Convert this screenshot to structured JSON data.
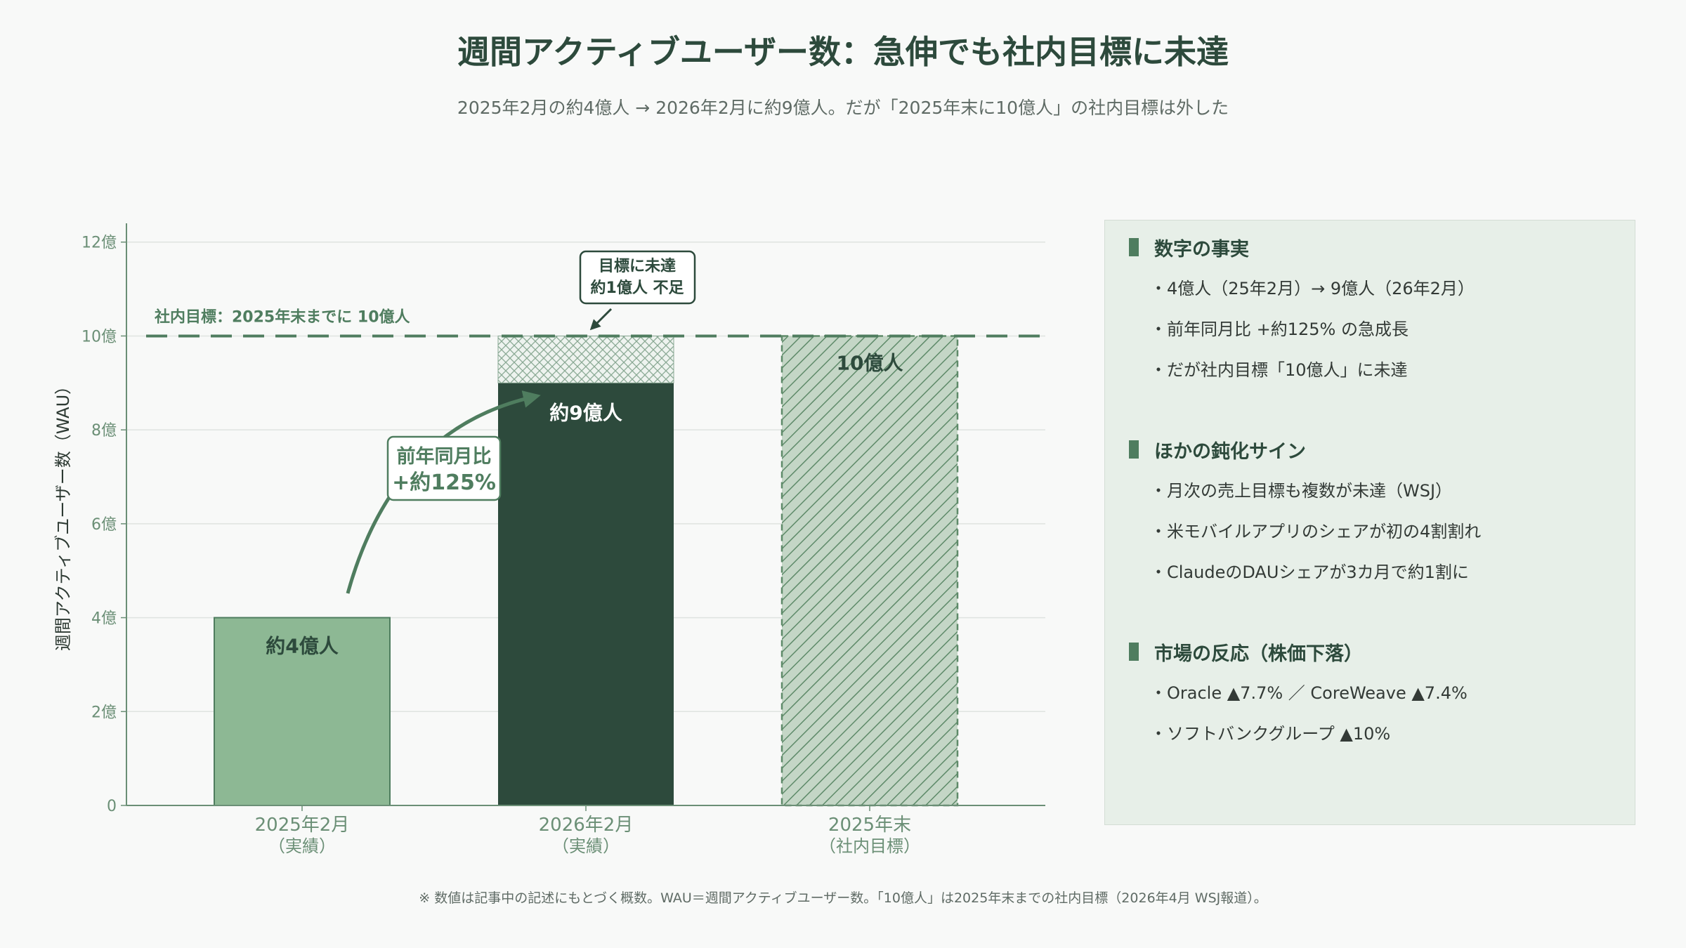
{
  "title": "週間アクティブユーザー数：急伸でも社内目標に未達",
  "subtitle": "2025年2月の約4億人 → 2026年2月に約9億人。だが「2025年末に10億人」の社内目標は外した",
  "chart_data": {
    "type": "bar",
    "ylabel": "週間アクティブユーザー数（WAU）",
    "ylim": [
      0,
      12.4
    ],
    "yticks": [
      0,
      2,
      4,
      6,
      8,
      10,
      12
    ],
    "ytick_labels": [
      "0",
      "2億",
      "4億",
      "6億",
      "8億",
      "10億",
      "12億"
    ],
    "categories": [
      [
        "2025年2月",
        "（実績）"
      ],
      [
        "2026年2月",
        "（実績）"
      ],
      [
        "2025年末",
        "（社内目標）"
      ]
    ],
    "values": [
      4,
      9,
      10
    ],
    "bar_labels": [
      "約4億人",
      "約9億人",
      "10億人"
    ],
    "bar_colors": [
      "#8db894",
      "#2d4a3c",
      "#c4d6c6"
    ],
    "gap_to_target": 1,
    "target_line": {
      "value": 10,
      "label": "社内目標：2025年末までに 10億人"
    },
    "annotations": {
      "growth": [
        "前年同月比",
        "+約125%"
      ],
      "shortfall": [
        "目標に未達",
        "約1億人 不足"
      ]
    },
    "grid": true
  },
  "panel": {
    "sections": [
      {
        "heading": "数字の事実",
        "items": [
          "4億人（25年2月）→ 9億人（26年2月）",
          "前年同月比 +約125% の急成長",
          "だが社内目標「10億人」に未達"
        ]
      },
      {
        "heading": "ほかの鈍化サイン",
        "items": [
          "月次の売上目標も複数が未達（WSJ）",
          "米モバイルアプリのシェアが初の4割割れ",
          "ClaudeのDAUシェアが3カ月で約1割に"
        ]
      },
      {
        "heading": "市場の反応（株価下落）",
        "items": [
          "Oracle ▲7.7% ／ CoreWeave ▲7.4%",
          "ソフトバンクグループ ▲10%"
        ]
      }
    ]
  },
  "footnote": "※ 数値は記事中の記述にもとづく概数。WAU＝週間アクティブユーザー数。「10億人」は2025年末までの社内目標（2026年4月 WSJ報道）。",
  "colors": {
    "accent": "#2d4a3c",
    "light_bar": "#8db894",
    "target_line": "#4f7d5f",
    "axis_text": "#6b8f76",
    "panel_bg": "#e7efe8"
  }
}
